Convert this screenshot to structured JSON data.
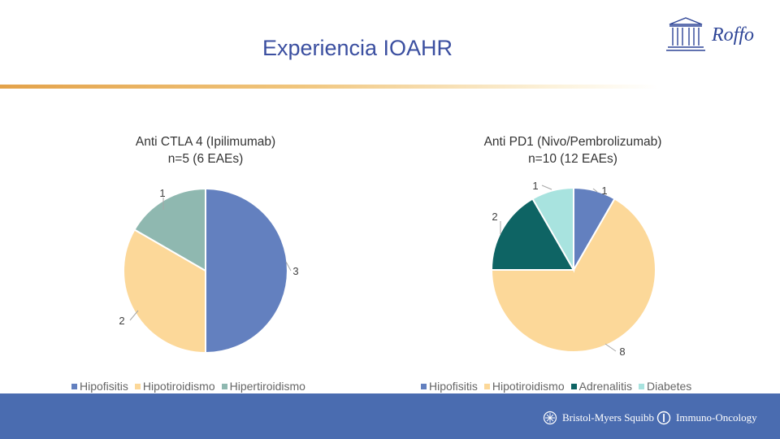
{
  "header": {
    "title": "Experiencia IOAHR",
    "logo_text": "Roffo"
  },
  "footer": {
    "bms_text": "Bristol-Myers Squibb",
    "io_text": "Immuno-Oncology"
  },
  "chart_data": [
    {
      "type": "pie",
      "title": "Anti CTLA 4 (Ipilimumab)",
      "subtitle": "n=5 (6 EAEs)",
      "categories": [
        "Hipofisitis",
        "Hipotiroidismo",
        "Hipertiroidismo"
      ],
      "values": [
        3,
        2,
        1
      ],
      "colors": [
        "#6380bf",
        "#fcd899",
        "#8fb8b0"
      ],
      "legend": "bottom",
      "data_labels": true
    },
    {
      "type": "pie",
      "title": "Anti PD1 (Nivo/Pembrolizumab)",
      "subtitle": "n=10 (12 EAEs)",
      "categories": [
        "Hipofisitis",
        "Hipotiroidismo",
        "Adrenalitis",
        "Diabetes"
      ],
      "values": [
        1,
        8,
        2,
        1
      ],
      "colors": [
        "#6380bf",
        "#fcd899",
        "#0e6464",
        "#a8e3df"
      ],
      "legend": "bottom",
      "data_labels": true
    }
  ]
}
